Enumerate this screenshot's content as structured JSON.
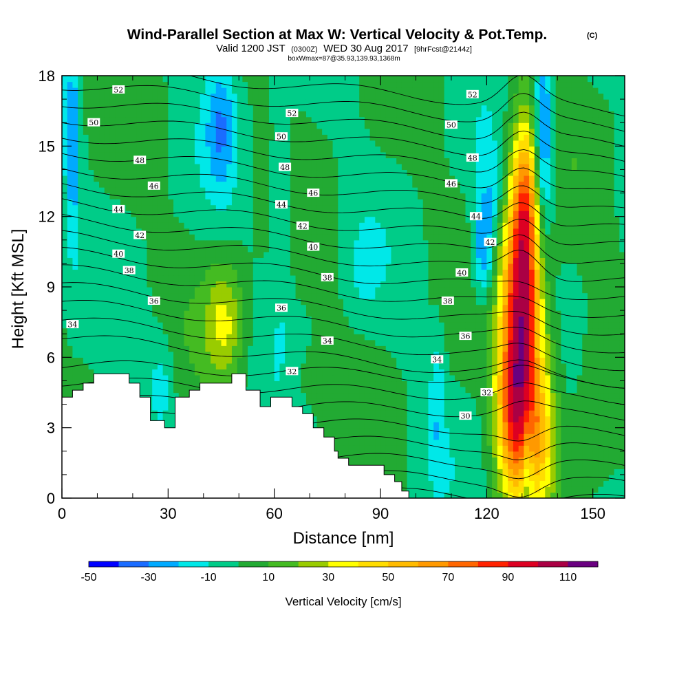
{
  "title": {
    "main": "Wind-Parallel Section at Max W: Vertical Velocity & Pot.Temp.",
    "copyright": "(C)",
    "valid_prefix": "Valid 1200 JST",
    "valid_utc": "(0300Z)",
    "valid_date": "WED 30 Aug 2017",
    "forecast": "[9hrFcst@2144z]",
    "boxinfo": "boxWmax=87@35.93,139.93,1368m"
  },
  "chart_data": {
    "type": "heatmap",
    "xlabel": "Distance [nm]",
    "ylabel": "Height [Kft MSL]",
    "xlim": [
      0,
      159
    ],
    "ylim": [
      0,
      18
    ],
    "xticks": [
      0,
      30,
      60,
      90,
      120,
      150
    ],
    "yticks": [
      0,
      3,
      6,
      9,
      12,
      15,
      18
    ],
    "colorbar": {
      "title": "Vertical Velocity [cm/s]",
      "levels": [
        -50,
        -40,
        -30,
        -20,
        -10,
        0,
        10,
        20,
        30,
        40,
        50,
        60,
        70,
        80,
        90,
        100,
        110,
        120
      ],
      "tick_labels": [
        "-50",
        "-30",
        "-10",
        "10",
        "30",
        "50",
        "70",
        "90",
        "110"
      ],
      "colors": [
        "#0000ff",
        "#1a6cff",
        "#00aaff",
        "#00e8e8",
        "#00cc88",
        "#22aa33",
        "#44bb22",
        "#99cc00",
        "#ffff00",
        "#ffdd00",
        "#ffbb00",
        "#ff9900",
        "#ff6600",
        "#ff2200",
        "#dd0022",
        "#aa0044",
        "#6a0080"
      ]
    },
    "background_w": 0,
    "features": [
      {
        "x": 130,
        "y": 8.0,
        "sx": 4.0,
        "sy": 4.3,
        "w": 102
      },
      {
        "x": 127,
        "y": 3.5,
        "sx": 3.5,
        "sy": 2.5,
        "w": 45
      },
      {
        "x": 135,
        "y": 2.5,
        "sx": 3.5,
        "sy": 2.0,
        "w": 35
      },
      {
        "x": 131,
        "y": 13.0,
        "sx": 2.5,
        "sy": 2.5,
        "w": 35
      },
      {
        "x": 46,
        "y": 7.5,
        "sx": 4.0,
        "sy": 1.8,
        "w": 30
      },
      {
        "x": 131.5,
        "y": 1.5,
        "sx": 1.2,
        "sy": 1.5,
        "w": -28
      },
      {
        "x": 136,
        "y": 15.0,
        "sx": 2.0,
        "sy": 3.0,
        "w": -42
      },
      {
        "x": 119,
        "y": 10.5,
        "sx": 2.2,
        "sy": 1.6,
        "w": -32
      },
      {
        "x": 122,
        "y": 13.0,
        "sx": 3.0,
        "sy": 1.5,
        "w": -15
      },
      {
        "x": 45,
        "y": 16.0,
        "sx": 3.0,
        "sy": 2.0,
        "w": -25
      },
      {
        "x": 3,
        "y": 15.0,
        "sx": 1.5,
        "sy": 3.0,
        "w": -28
      },
      {
        "x": 62,
        "y": 12.5,
        "sx": 2.0,
        "sy": 3.0,
        "w": -18
      },
      {
        "x": 28,
        "y": 5.0,
        "sx": 2.5,
        "sy": 1.5,
        "w": -15
      },
      {
        "x": 106,
        "y": 3.0,
        "sx": 1.5,
        "sy": 2.0,
        "w": -12
      },
      {
        "x": 106,
        "y": 6.0,
        "sx": 1.5,
        "sy": 1.5,
        "w": -8
      },
      {
        "x": 85,
        "y": 9.5,
        "sx": 3.0,
        "sy": 1.5,
        "w": -8
      },
      {
        "x": 70,
        "y": 5.0,
        "sx": 4.0,
        "sy": 1.0,
        "w": 8
      },
      {
        "x": 138,
        "y": 6.0,
        "sx": 3.0,
        "sy": 2.0,
        "w": 10
      },
      {
        "x": 150,
        "y": 4.0,
        "sx": 5.0,
        "sy": 3.0,
        "w": 8
      }
    ],
    "terrain": [
      [
        0,
        4.3
      ],
      [
        3,
        4.3
      ],
      [
        3,
        4.6
      ],
      [
        6,
        4.6
      ],
      [
        6,
        4.9
      ],
      [
        9,
        4.9
      ],
      [
        9,
        5.3
      ],
      [
        19,
        5.3
      ],
      [
        19,
        4.9
      ],
      [
        22,
        4.9
      ],
      [
        22,
        4.3
      ],
      [
        25,
        4.3
      ],
      [
        25,
        3.3
      ],
      [
        29,
        3.3
      ],
      [
        29,
        3.0
      ],
      [
        32,
        3.0
      ],
      [
        32,
        4.3
      ],
      [
        36,
        4.3
      ],
      [
        36,
        4.6
      ],
      [
        39,
        4.6
      ],
      [
        39,
        4.9
      ],
      [
        48,
        4.9
      ],
      [
        48,
        5.3
      ],
      [
        52,
        5.3
      ],
      [
        52,
        4.6
      ],
      [
        56,
        4.6
      ],
      [
        56,
        3.9
      ],
      [
        59,
        3.9
      ],
      [
        59,
        4.3
      ],
      [
        65,
        4.3
      ],
      [
        65,
        3.9
      ],
      [
        68,
        3.9
      ],
      [
        68,
        3.6
      ],
      [
        71,
        3.6
      ],
      [
        71,
        3.0
      ],
      [
        74,
        3.0
      ],
      [
        74,
        2.6
      ],
      [
        77,
        2.6
      ],
      [
        77,
        2.0
      ],
      [
        78,
        2.0
      ],
      [
        78,
        1.7
      ],
      [
        81,
        1.7
      ],
      [
        81,
        1.4
      ],
      [
        91,
        1.4
      ],
      [
        91,
        1.0
      ],
      [
        94,
        1.0
      ],
      [
        94,
        0.7
      ],
      [
        96,
        0.7
      ],
      [
        96,
        0.3
      ],
      [
        98,
        0.3
      ],
      [
        98,
        0
      ],
      [
        0,
        0
      ]
    ],
    "isentropes": [
      30,
      32,
      34,
      36,
      38,
      40,
      42,
      44,
      46,
      48,
      50,
      52
    ],
    "contour_labels": [
      {
        "v": "52",
        "x": 16,
        "y": 17.4
      },
      {
        "v": "52",
        "x": 65,
        "y": 16.4
      },
      {
        "v": "52",
        "x": 116,
        "y": 17.2
      },
      {
        "v": "50",
        "x": 9,
        "y": 16.0
      },
      {
        "v": "50",
        "x": 62,
        "y": 15.4
      },
      {
        "v": "50",
        "x": 110,
        "y": 15.9
      },
      {
        "v": "48",
        "x": 22,
        "y": 14.4
      },
      {
        "v": "48",
        "x": 63,
        "y": 14.1
      },
      {
        "v": "48",
        "x": 116,
        "y": 14.5
      },
      {
        "v": "46",
        "x": 26,
        "y": 13.3
      },
      {
        "v": "46",
        "x": 71,
        "y": 13.0
      },
      {
        "v": "46",
        "x": 110,
        "y": 13.4
      },
      {
        "v": "44",
        "x": 16,
        "y": 12.3
      },
      {
        "v": "44",
        "x": 62,
        "y": 12.5
      },
      {
        "v": "44",
        "x": 117,
        "y": 12.0
      },
      {
        "v": "42",
        "x": 22,
        "y": 11.2
      },
      {
        "v": "42",
        "x": 68,
        "y": 11.6
      },
      {
        "v": "42",
        "x": 121,
        "y": 10.9
      },
      {
        "v": "40",
        "x": 16,
        "y": 10.4
      },
      {
        "v": "40",
        "x": 71,
        "y": 10.7
      },
      {
        "v": "40",
        "x": 113,
        "y": 9.6
      },
      {
        "v": "38",
        "x": 19,
        "y": 9.7
      },
      {
        "v": "38",
        "x": 75,
        "y": 9.4
      },
      {
        "v": "38",
        "x": 109,
        "y": 8.4
      },
      {
        "v": "36",
        "x": 26,
        "y": 8.4
      },
      {
        "v": "36",
        "x": 62,
        "y": 8.1
      },
      {
        "v": "36",
        "x": 114,
        "y": 6.9
      },
      {
        "v": "34",
        "x": 3,
        "y": 7.4
      },
      {
        "v": "34",
        "x": 75,
        "y": 6.7
      },
      {
        "v": "34",
        "x": 106,
        "y": 5.9
      },
      {
        "v": "32",
        "x": 65,
        "y": 5.4
      },
      {
        "v": "32",
        "x": 120,
        "y": 4.5
      },
      {
        "v": "30",
        "x": 114,
        "y": 3.5
      }
    ]
  }
}
